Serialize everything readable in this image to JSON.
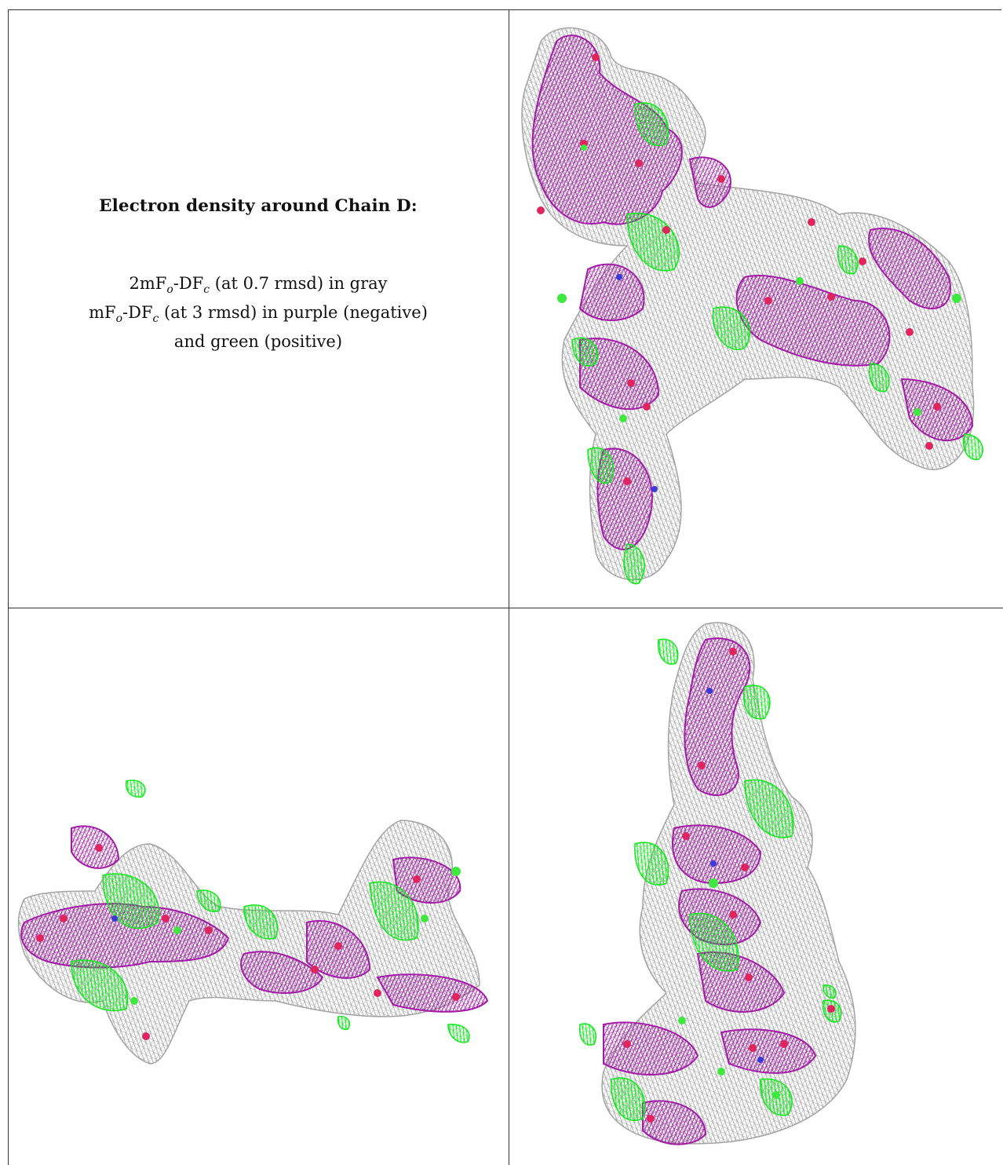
{
  "heading": "Electron density around Chain D:",
  "legend": {
    "line1": {
      "prefix": "2mF",
      "sub_o": "o",
      "mid": "-DF",
      "sub_c": "c",
      "suffix": " (at 0.7 rmsd) in gray"
    },
    "line2": {
      "prefix": "mF",
      "sub_o": "o",
      "mid": "-DF",
      "sub_c": "c",
      "suffix": " (at 3 rmsd) in purple (negative)"
    },
    "line3": "and green (positive)"
  },
  "colors": {
    "map_2fofc": "#9a9a9a",
    "map_negative": "#a21ca6",
    "map_positive": "#14e61e",
    "atom_oxygen": "#e0245e",
    "atom_nitrogen": "#3a3ad8",
    "atom_chloride": "#3ee83e"
  },
  "panels": [
    {
      "view": "top-right"
    },
    {
      "view": "bottom-left"
    },
    {
      "view": "bottom-right"
    }
  ]
}
